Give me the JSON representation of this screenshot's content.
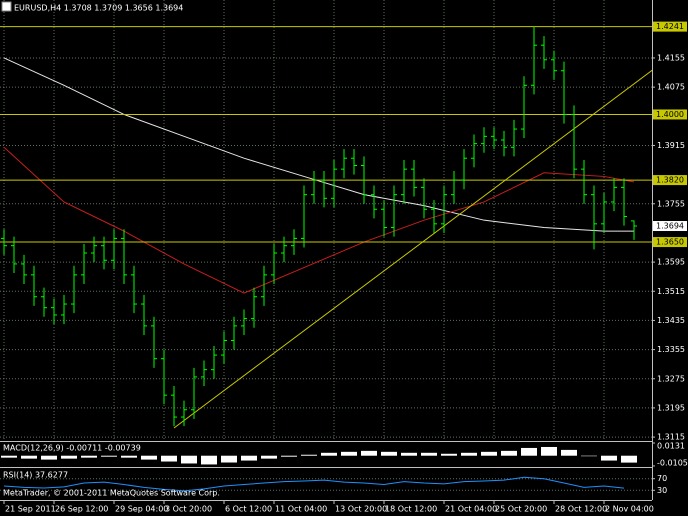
{
  "chart_data": {
    "type": "ohlc",
    "title": "EURUSD,H4 1.3708 1.3709 1.3656 1.3694",
    "footer": "MetaTrader, © 2001-2011 MetaQuotes Software Corp.",
    "ylim": [
      1.3107,
      1.4314
    ],
    "xlim": [
      -0.4,
      64.8
    ],
    "grid": true,
    "yticks": [
      1.4155,
      1.4075,
      1.3915,
      1.3755,
      1.3595,
      1.3515,
      1.3435,
      1.3355,
      1.3275,
      1.3195,
      1.3115
    ],
    "xticks": [
      {
        "value": 0,
        "label": "21 Sep 2011"
      },
      {
        "value": 5,
        "label": "26 Sep 12:00"
      },
      {
        "value": 11,
        "label": "29 Sep 04:00"
      },
      {
        "value": 16,
        "label": "3 Oct 20:00"
      },
      {
        "value": 22,
        "label": "6 Oct 12:00"
      },
      {
        "value": 27,
        "label": "11 Oct 04:00"
      },
      {
        "value": 33,
        "label": "13 Oct 20:00"
      },
      {
        "value": 38,
        "label": "18 Oct 12:00"
      },
      {
        "value": 44,
        "label": "21 Oct 04:00"
      },
      {
        "value": 49,
        "label": "25 Oct 20:00"
      },
      {
        "value": 55,
        "label": "28 Oct 12:00"
      },
      {
        "value": 60,
        "label": "2 Nov 04:00"
      }
    ],
    "ohlc": {
      "color": "#00ff00",
      "open": [
        1.366,
        1.364,
        1.359,
        1.356,
        1.35,
        1.347,
        1.345,
        1.348,
        1.356,
        1.362,
        1.364,
        1.36,
        1.366,
        1.356,
        1.348,
        1.342,
        1.333,
        1.323,
        1.317,
        1.319,
        1.328,
        1.33,
        1.334,
        1.338,
        1.342,
        1.344,
        1.35,
        1.356,
        1.362,
        1.364,
        1.366,
        1.378,
        1.382,
        1.377,
        1.385,
        1.388,
        1.386,
        1.378,
        1.374,
        1.369,
        1.378,
        1.385,
        1.38,
        1.374,
        1.37,
        1.378,
        1.382,
        1.388,
        1.392,
        1.394,
        1.393,
        1.391,
        1.396,
        1.408,
        1.419,
        1.415,
        1.412,
        1.4,
        1.385,
        1.378,
        1.37,
        1.376,
        1.38,
        1.3708
      ],
      "high": [
        1.3685,
        1.3665,
        1.3615,
        1.3585,
        1.3525,
        1.3495,
        1.3505,
        1.3585,
        1.3645,
        1.3665,
        1.3665,
        1.3685,
        1.3685,
        1.3585,
        1.3505,
        1.3445,
        1.3355,
        1.3255,
        1.3215,
        1.3305,
        1.3325,
        1.3365,
        1.3405,
        1.3445,
        1.3465,
        1.3525,
        1.3585,
        1.3645,
        1.3665,
        1.3685,
        1.3805,
        1.3845,
        1.3845,
        1.3875,
        1.3905,
        1.3905,
        1.3885,
        1.3805,
        1.3765,
        1.3805,
        1.3875,
        1.3875,
        1.3825,
        1.3765,
        1.3805,
        1.3845,
        1.3905,
        1.3945,
        1.3965,
        1.3965,
        1.3955,
        1.3985,
        1.4105,
        1.4241,
        1.4215,
        1.4175,
        1.4145,
        1.4025,
        1.3875,
        1.3805,
        1.3785,
        1.3825,
        1.3825,
        1.3709
      ],
      "low": [
        1.3615,
        1.3565,
        1.3535,
        1.3475,
        1.3445,
        1.3425,
        1.3425,
        1.3455,
        1.3535,
        1.3595,
        1.3575,
        1.3575,
        1.3535,
        1.3455,
        1.3395,
        1.3305,
        1.3205,
        1.3145,
        1.3145,
        1.3165,
        1.3255,
        1.3275,
        1.3315,
        1.3355,
        1.3395,
        1.3415,
        1.3475,
        1.3535,
        1.3595,
        1.3615,
        1.3635,
        1.3755,
        1.3745,
        1.3745,
        1.3825,
        1.3835,
        1.3755,
        1.3715,
        1.3665,
        1.3665,
        1.3755,
        1.3775,
        1.3715,
        1.3675,
        1.3675,
        1.3755,
        1.3795,
        1.3855,
        1.3895,
        1.3905,
        1.3885,
        1.3885,
        1.3935,
        1.4055,
        1.4125,
        1.4095,
        1.3975,
        1.3825,
        1.3755,
        1.363,
        1.3675,
        1.3735,
        1.3695,
        1.3656
      ],
      "close": [
        1.364,
        1.359,
        1.356,
        1.35,
        1.347,
        1.345,
        1.348,
        1.356,
        1.362,
        1.364,
        1.36,
        1.366,
        1.356,
        1.348,
        1.342,
        1.333,
        1.323,
        1.317,
        1.319,
        1.328,
        1.33,
        1.334,
        1.338,
        1.342,
        1.344,
        1.35,
        1.356,
        1.362,
        1.364,
        1.366,
        1.378,
        1.382,
        1.377,
        1.385,
        1.388,
        1.386,
        1.378,
        1.374,
        1.369,
        1.378,
        1.385,
        1.38,
        1.374,
        1.37,
        1.378,
        1.382,
        1.388,
        1.392,
        1.394,
        1.393,
        1.391,
        1.396,
        1.408,
        1.419,
        1.415,
        1.412,
        1.4,
        1.385,
        1.378,
        1.37,
        1.376,
        1.38,
        1.372,
        1.3694
      ]
    },
    "overlays": [
      {
        "color": "#e6e6e6",
        "x": [
          0,
          6,
          12,
          18,
          24,
          30,
          36,
          42,
          48,
          54,
          60,
          63
        ],
        "values": [
          1.4155,
          1.408,
          1.4,
          1.394,
          1.388,
          1.383,
          1.378,
          1.375,
          1.371,
          1.369,
          1.368,
          1.368
        ]
      },
      {
        "color": "#c81e1e",
        "x": [
          0,
          6,
          12,
          18,
          24,
          30,
          36,
          42,
          48,
          54,
          60,
          63
        ],
        "values": [
          1.391,
          1.376,
          1.368,
          1.359,
          1.351,
          1.358,
          1.365,
          1.371,
          1.376,
          1.384,
          1.383,
          1.3815
        ]
      }
    ],
    "trendline": {
      "color": "#c8c800",
      "x": [
        17,
        65
      ],
      "values": [
        1.314,
        1.4125
      ]
    },
    "levels": {
      "color": "#c8c800",
      "values": [
        1.4241,
        {
          "value": 1.4,
          "label": "1.4000"
        },
        {
          "value": 1.382,
          "label": "1.3820"
        },
        {
          "value": 1.365,
          "label": "1.3650"
        }
      ]
    },
    "current": 1.3694,
    "panels": [
      {
        "type": "histogram",
        "label": "MACD(12,26,9) -0.00711 -0.00739",
        "color": "#ffffff",
        "ylim": [
          -0.0106,
          0.0131
        ],
        "yticks": [
          0.0131,
          -0.01055
        ],
        "x": [
          0,
          2,
          4,
          6,
          8,
          10,
          12,
          14,
          16,
          18,
          20,
          22,
          24,
          26,
          28,
          30,
          32,
          34,
          36,
          38,
          40,
          42,
          44,
          46,
          48,
          50,
          52,
          54,
          56,
          58,
          60,
          62
        ],
        "values": [
          -0.002,
          -0.003,
          -0.004,
          -0.003,
          -0.002,
          -0.001,
          -0.002,
          -0.004,
          -0.006,
          -0.008,
          -0.009,
          -0.007,
          -0.005,
          -0.003,
          -0.001,
          0.001,
          0.003,
          0.004,
          0.005,
          0.004,
          0.003,
          0.003,
          0.002,
          0.003,
          0.004,
          0.005,
          0.008,
          0.009,
          0.006,
          0.0,
          -0.005,
          -0.0071
        ]
      },
      {
        "type": "line",
        "label": "RSI(14) 37.6277",
        "color": "#1e90ff",
        "ylim": [
          0,
          100
        ],
        "yticks": [
          70,
          30
        ],
        "x": [
          0,
          2,
          4,
          6,
          8,
          10,
          12,
          14,
          16,
          18,
          20,
          22,
          24,
          26,
          28,
          30,
          32,
          34,
          36,
          38,
          40,
          42,
          44,
          46,
          48,
          50,
          52,
          54,
          56,
          58,
          60,
          62
        ],
        "values": [
          45,
          40,
          38,
          42,
          55,
          58,
          50,
          40,
          33,
          28,
          35,
          45,
          50,
          55,
          60,
          62,
          65,
          58,
          55,
          50,
          60,
          55,
          52,
          60,
          62,
          65,
          75,
          70,
          55,
          40,
          45,
          37.6277
        ]
      }
    ]
  }
}
